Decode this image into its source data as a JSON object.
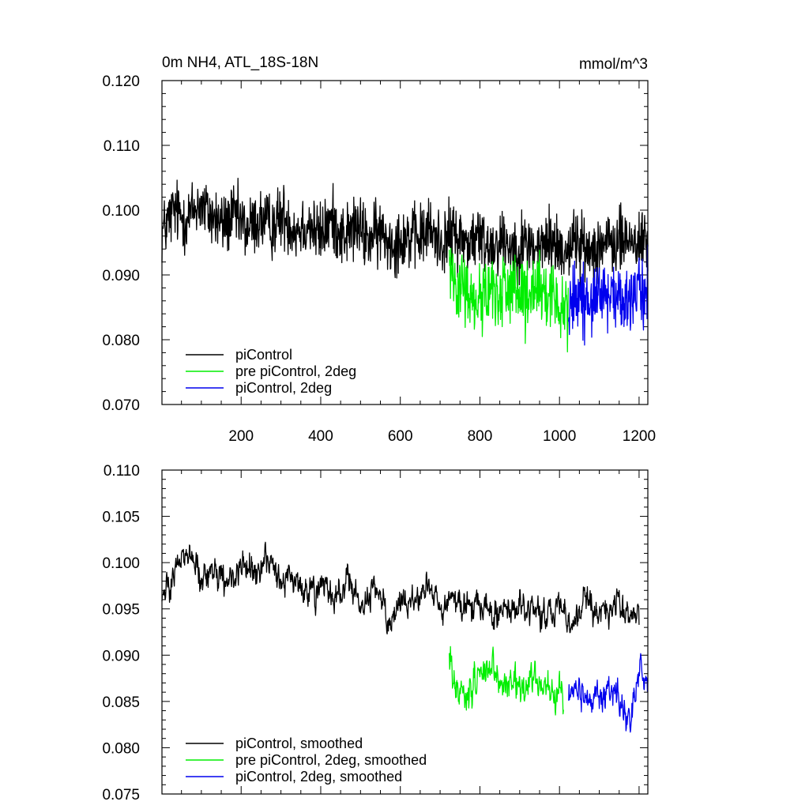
{
  "chart_data": [
    {
      "type": "line",
      "title_left": "0m NH4, ATL_18S-18N",
      "title_right": "mmol/m^3",
      "xlabel": "",
      "ylabel": "",
      "xlim": [
        1,
        1222
      ],
      "ylim": [
        0.07,
        0.12
      ],
      "x_ticks": [
        200,
        400,
        600,
        800,
        1000,
        1200
      ],
      "x_tick_labels": [
        "200",
        "400",
        "600",
        "800",
        "1000",
        "1200"
      ],
      "y_ticks": [
        0.07,
        0.08,
        0.09,
        0.1,
        0.11,
        0.12
      ],
      "y_tick_labels": [
        "0.070",
        "0.080",
        "0.090",
        "0.100",
        "0.110",
        "0.120"
      ],
      "legend_position": "bottom-left",
      "series": [
        {
          "name": "piControl",
          "color": "#000000",
          "x_range": [
            1,
            1222
          ],
          "y": [
            0.0965,
            0.1,
            0.0985,
            0.101,
            0.0992,
            0.0978,
            0.099,
            0.097,
            0.0985,
            0.0975,
            0.0992,
            0.097,
            0.098,
            0.096,
            0.0985,
            0.096,
            0.0975,
            0.0955,
            0.0965,
            0.095,
            0.096,
            0.0955,
            0.097,
            0.095,
            0.0965,
            0.095,
            0.0958,
            0.0945,
            0.0955,
            0.0942,
            0.0948,
            0.094,
            0.0955,
            0.0935,
            0.0955,
            0.0935,
            0.095,
            0.0945,
            0.0955,
            0.095,
            0.0952
          ],
          "spread": 0.0075
        },
        {
          "name": "pre piControl, 2deg",
          "color": "#00ee00",
          "x_range": [
            723,
            1022
          ],
          "y": [
            0.092,
            0.088,
            0.086,
            0.0875,
            0.087,
            0.0885,
            0.086,
            0.0865,
            0.087,
            0.0855,
            0.086
          ],
          "spread": 0.0085
        },
        {
          "name": "piControl, 2deg",
          "color": "#0000ee",
          "x_range": [
            1023,
            1222
          ],
          "y": [
            0.085,
            0.087,
            0.086,
            0.0855,
            0.087,
            0.085,
            0.0865,
            0.088
          ],
          "spread": 0.008
        }
      ]
    },
    {
      "type": "line",
      "title_left": "",
      "title_right": "",
      "xlabel": "",
      "ylabel": "",
      "xlim": [
        1,
        1222
      ],
      "ylim": [
        0.075,
        0.11
      ],
      "x_ticks": [
        200,
        400,
        600,
        800,
        1000,
        1200
      ],
      "x_tick_labels": [],
      "y_ticks": [
        0.075,
        0.08,
        0.085,
        0.09,
        0.095,
        0.1,
        0.105,
        0.11
      ],
      "y_tick_labels": [
        "0.075",
        "0.080",
        "0.085",
        "0.090",
        "0.095",
        "0.100",
        "0.105",
        "0.110"
      ],
      "legend_position": "bottom-left",
      "series": [
        {
          "name": "piControl, smoothed",
          "color": "#000000",
          "x_range": [
            1,
            1200
          ],
          "y": [
            0.096,
            0.0995,
            0.101,
            0.098,
            0.0985,
            0.0975,
            0.1,
            0.099,
            0.1,
            0.0975,
            0.0985,
            0.0965,
            0.0975,
            0.0955,
            0.098,
            0.095,
            0.0975,
            0.094,
            0.0965,
            0.095,
            0.0975,
            0.095,
            0.096,
            0.0945,
            0.0958,
            0.094,
            0.095,
            0.0945,
            0.0958,
            0.0935,
            0.0955,
            0.093,
            0.096,
            0.0945,
            0.0955,
            0.0945,
            0.095
          ],
          "spread": 0.0035
        },
        {
          "name": "pre piControl, 2deg, smoothed",
          "color": "#00ee00",
          "x_range": [
            723,
            1010
          ],
          "y": [
            0.09,
            0.086,
            0.0855,
            0.0875,
            0.0885,
            0.0865,
            0.0875,
            0.0865,
            0.087,
            0.086,
            0.0865,
            0.085
          ],
          "spread": 0.004
        },
        {
          "name": "piControl, 2deg, smoothed",
          "color": "#0000ee",
          "x_range": [
            1023,
            1222
          ],
          "y": [
            0.086,
            0.087,
            0.085,
            0.086,
            0.0855,
            0.0865,
            0.083,
            0.0875,
            0.088
          ],
          "spread": 0.0035
        }
      ]
    }
  ]
}
